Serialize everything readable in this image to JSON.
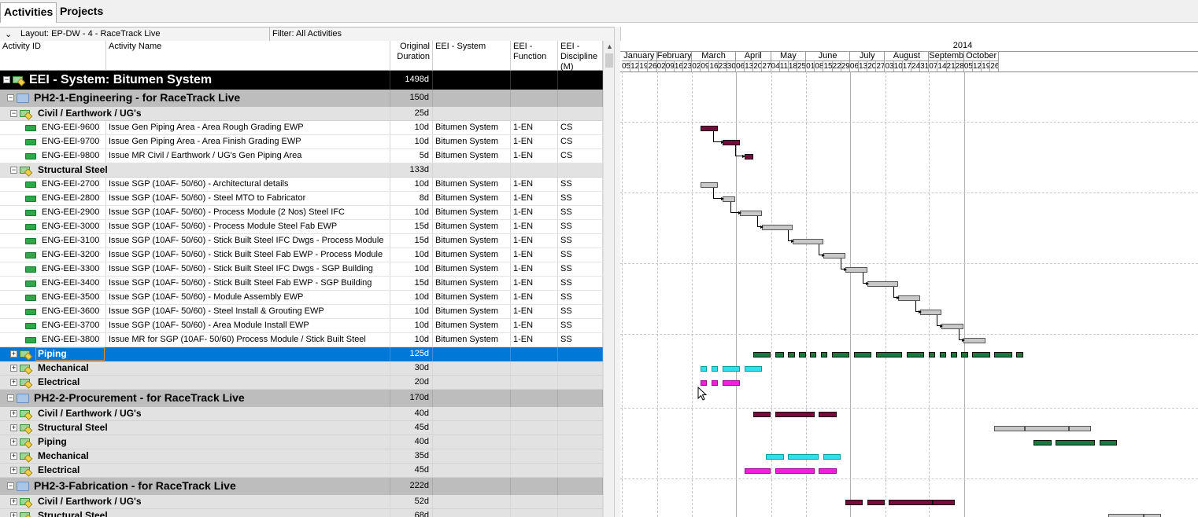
{
  "tabs": [
    "Activities",
    "Projects"
  ],
  "layout_label": "Layout: EP-DW - 4 - RaceTrack Live",
  "filter_label": "Filter: All Activities",
  "columns": [
    "Activity ID",
    "Activity Name",
    "Original Duration",
    "EEI - System",
    "EEI - Function",
    "EEI - Discipline (M)"
  ],
  "rows": [
    {
      "level": "top",
      "id": "",
      "name": "EEI - System: Bitumen System",
      "dur": "1498d",
      "sys": "",
      "fn": "",
      "disc": ""
    },
    {
      "level": "l1",
      "id": "",
      "name": "PH2-1-Engineering - for RaceTrack Live",
      "dur": "150d",
      "sys": "",
      "fn": "",
      "disc": ""
    },
    {
      "level": "l2",
      "id": "",
      "name": "Civil / Earthwork / UG's",
      "dur": "25d",
      "sys": "",
      "fn": "",
      "disc": ""
    },
    {
      "level": "leaf",
      "id": "ENG-EEI-9600",
      "name": "Issue Gen Piping Area - Area Rough Grading EWP",
      "dur": "10d",
      "sys": "Bitumen System",
      "fn": "1-EN",
      "disc": "CS"
    },
    {
      "level": "leaf",
      "id": "ENG-EEI-9700",
      "name": "Issue Gen Piping Area - Area Finish Grading EWP",
      "dur": "10d",
      "sys": "Bitumen System",
      "fn": "1-EN",
      "disc": "CS"
    },
    {
      "level": "leaf",
      "id": "ENG-EEI-9800",
      "name": "Issue MR Civil / Earthwork / UG's Gen Piping Area",
      "dur": "5d",
      "sys": "Bitumen System",
      "fn": "1-EN",
      "disc": "CS"
    },
    {
      "level": "l2",
      "id": "",
      "name": "Structural Steel",
      "dur": "133d",
      "sys": "",
      "fn": "",
      "disc": ""
    },
    {
      "level": "leaf",
      "id": "ENG-EEI-2700",
      "name": "Issue SGP (10AF- 50/60) - Architectural details",
      "dur": "10d",
      "sys": "Bitumen System",
      "fn": "1-EN",
      "disc": "SS"
    },
    {
      "level": "leaf",
      "id": "ENG-EEI-2800",
      "name": "Issue SGP (10AF- 50/60) - Steel MTO to Fabricator",
      "dur": "8d",
      "sys": "Bitumen System",
      "fn": "1-EN",
      "disc": "SS"
    },
    {
      "level": "leaf",
      "id": "ENG-EEI-2900",
      "name": "Issue SGP (10AF- 50/60) - Process Module (2 Nos) Steel IFC",
      "dur": "10d",
      "sys": "Bitumen System",
      "fn": "1-EN",
      "disc": "SS"
    },
    {
      "level": "leaf",
      "id": "ENG-EEI-3000",
      "name": "Issue SGP (10AF- 50/60) - Process Module Steel Fab EWP",
      "dur": "15d",
      "sys": "Bitumen System",
      "fn": "1-EN",
      "disc": "SS"
    },
    {
      "level": "leaf",
      "id": "ENG-EEI-3100",
      "name": "Issue SGP (10AF- 50/60) - Stick Built Steel IFC Dwgs - Process Module",
      "dur": "15d",
      "sys": "Bitumen System",
      "fn": "1-EN",
      "disc": "SS"
    },
    {
      "level": "leaf",
      "id": "ENG-EEI-3200",
      "name": "Issue SGP (10AF- 50/60) - Stick Built Steel Fab EWP - Process Module",
      "dur": "10d",
      "sys": "Bitumen System",
      "fn": "1-EN",
      "disc": "SS"
    },
    {
      "level": "leaf",
      "id": "ENG-EEI-3300",
      "name": "Issue SGP (10AF- 50/60) - Stick Built Steel IFC Dwgs - SGP Building",
      "dur": "10d",
      "sys": "Bitumen System",
      "fn": "1-EN",
      "disc": "SS"
    },
    {
      "level": "leaf",
      "id": "ENG-EEI-3400",
      "name": "Issue SGP (10AF- 50/60) - Stick Built Steel Fab EWP - SGP Building",
      "dur": "15d",
      "sys": "Bitumen System",
      "fn": "1-EN",
      "disc": "SS"
    },
    {
      "level": "leaf",
      "id": "ENG-EEI-3500",
      "name": "Issue SGP (10AF- 50/60) - Module Assembly EWP",
      "dur": "10d",
      "sys": "Bitumen System",
      "fn": "1-EN",
      "disc": "SS"
    },
    {
      "level": "leaf",
      "id": "ENG-EEI-3600",
      "name": "Issue SGP (10AF- 50/60) - Steel Install & Grouting EWP",
      "dur": "10d",
      "sys": "Bitumen System",
      "fn": "1-EN",
      "disc": "SS"
    },
    {
      "level": "leaf",
      "id": "ENG-EEI-3700",
      "name": "Issue SGP (10AF- 50/60) - Area Module Install EWP",
      "dur": "10d",
      "sys": "Bitumen System",
      "fn": "1-EN",
      "disc": "SS"
    },
    {
      "level": "leaf",
      "id": "ENG-EEI-3800",
      "name": "Issue MR for SGP (10AF- 50/60) Process Module / Stick Built Steel",
      "dur": "10d",
      "sys": "Bitumen System",
      "fn": "1-EN",
      "disc": "SS"
    },
    {
      "level": "sel",
      "id": "",
      "name": "Piping",
      "dur": "125d",
      "sys": "",
      "fn": "",
      "disc": ""
    },
    {
      "level": "l2",
      "id": "",
      "name": "Mechanical",
      "dur": "30d",
      "sys": "",
      "fn": "",
      "disc": ""
    },
    {
      "level": "l2",
      "id": "",
      "name": "Electrical",
      "dur": "20d",
      "sys": "",
      "fn": "",
      "disc": ""
    },
    {
      "level": "l1",
      "id": "",
      "name": "PH2-2-Procurement - for RaceTrack Live",
      "dur": "170d",
      "sys": "",
      "fn": "",
      "disc": ""
    },
    {
      "level": "l2",
      "id": "",
      "name": "Civil / Earthwork / UG's",
      "dur": "40d",
      "sys": "",
      "fn": "",
      "disc": ""
    },
    {
      "level": "l2",
      "id": "",
      "name": "Structural Steel",
      "dur": "45d",
      "sys": "",
      "fn": "",
      "disc": ""
    },
    {
      "level": "l2",
      "id": "",
      "name": "Piping",
      "dur": "40d",
      "sys": "",
      "fn": "",
      "disc": ""
    },
    {
      "level": "l2",
      "id": "",
      "name": "Mechanical",
      "dur": "35d",
      "sys": "",
      "fn": "",
      "disc": ""
    },
    {
      "level": "l2",
      "id": "",
      "name": "Electrical",
      "dur": "45d",
      "sys": "",
      "fn": "",
      "disc": ""
    },
    {
      "level": "l1",
      "id": "",
      "name": "PH2-3-Fabrication - for RaceTrack Live",
      "dur": "222d",
      "sys": "",
      "fn": "",
      "disc": ""
    },
    {
      "level": "l2",
      "id": "",
      "name": "Civil / Earthwork / UG's",
      "dur": "52d",
      "sys": "",
      "fn": "",
      "disc": ""
    },
    {
      "level": "l2",
      "id": "",
      "name": "Structural Steel",
      "dur": "68d",
      "sys": "",
      "fn": "",
      "disc": ""
    }
  ],
  "timescale": {
    "year": "2014",
    "months": [
      "January",
      "February",
      "March",
      "April",
      "May",
      "June",
      "July",
      "August",
      "September",
      "October"
    ],
    "weeks": [
      "05",
      "12",
      "19",
      "26",
      "02",
      "09",
      "16",
      "23",
      "02",
      "09",
      "16",
      "23",
      "30",
      "06",
      "13",
      "20",
      "27",
      "04",
      "11",
      "18",
      "25",
      "01",
      "08",
      "15",
      "22",
      "29",
      "06",
      "13",
      "20",
      "27",
      "03",
      "10",
      "17",
      "24",
      "31",
      "07",
      "14",
      "21",
      "28",
      "05",
      "12",
      "19",
      "26"
    ]
  },
  "bar_colors": {
    "civil": "#7a0a3c",
    "steel": "#c8c8c8",
    "piping": "#1a7a3c",
    "mech": "#2fe0ea",
    "elec": "#f020d8"
  },
  "gantt": [
    {
      "row": 3,
      "segs": [
        [
          10,
          14
        ]
      ],
      "color": "civil"
    },
    {
      "row": 4,
      "segs": [
        [
          15,
          19
        ]
      ],
      "color": "civil"
    },
    {
      "row": 5,
      "segs": [
        [
          20,
          22
        ]
      ],
      "color": "civil"
    },
    {
      "row": 7,
      "segs": [
        [
          10,
          14
        ]
      ],
      "color": "steel"
    },
    {
      "row": 8,
      "segs": [
        [
          15,
          18
        ]
      ],
      "color": "steel"
    },
    {
      "row": 9,
      "segs": [
        [
          19,
          24
        ]
      ],
      "color": "steel"
    },
    {
      "row": 10,
      "segs": [
        [
          24,
          31
        ]
      ],
      "color": "steel"
    },
    {
      "row": 11,
      "segs": [
        [
          31,
          38
        ]
      ],
      "color": "steel"
    },
    {
      "row": 12,
      "segs": [
        [
          38,
          43
        ]
      ],
      "color": "steel"
    },
    {
      "row": 13,
      "segs": [
        [
          43,
          48
        ]
      ],
      "color": "steel"
    },
    {
      "row": 14,
      "segs": [
        [
          48,
          55
        ]
      ],
      "color": "steel"
    },
    {
      "row": 15,
      "segs": [
        [
          55,
          60
        ]
      ],
      "color": "steel"
    },
    {
      "row": 16,
      "segs": [
        [
          60,
          65
        ]
      ],
      "color": "steel"
    },
    {
      "row": 17,
      "segs": [
        [
          65,
          70
        ]
      ],
      "color": "steel"
    },
    {
      "row": 18,
      "segs": [
        [
          70,
          75
        ]
      ],
      "color": "steel"
    },
    {
      "row": 19,
      "segs": [
        [
          22,
          26
        ],
        [
          27,
          29
        ],
        [
          30,
          31.5
        ],
        [
          32.5,
          34
        ],
        [
          35,
          36.5
        ],
        [
          37.5,
          39
        ],
        [
          40,
          44
        ],
        [
          45,
          49
        ],
        [
          50,
          56
        ],
        [
          57,
          61
        ],
        [
          62,
          63.5
        ],
        [
          64.5,
          66
        ],
        [
          67,
          68.5
        ],
        [
          69.5,
          71
        ],
        [
          72,
          76
        ],
        [
          77,
          81
        ],
        [
          82,
          83.5
        ]
      ],
      "color": "piping"
    },
    {
      "row": 20,
      "segs": [
        [
          10,
          11.5
        ],
        [
          12.5,
          14
        ],
        [
          15,
          19
        ],
        [
          20,
          24
        ]
      ],
      "color": "mech"
    },
    {
      "row": 21,
      "segs": [
        [
          10,
          11.5
        ],
        [
          12.5,
          14
        ],
        [
          15,
          19
        ]
      ],
      "color": "elec"
    },
    {
      "row": 23,
      "segs": [
        [
          22,
          26
        ],
        [
          27,
          36
        ],
        [
          37,
          41
        ]
      ],
      "color": "civil"
    },
    {
      "row": 24,
      "segs": [
        [
          77,
          84
        ],
        [
          84,
          94
        ],
        [
          94,
          99
        ]
      ],
      "color": "steel"
    },
    {
      "row": 25,
      "segs": [
        [
          86,
          90
        ],
        [
          91,
          100
        ],
        [
          101,
          105
        ]
      ],
      "color": "piping"
    },
    {
      "row": 26,
      "segs": [
        [
          25,
          29
        ],
        [
          30,
          37
        ],
        [
          38,
          42
        ]
      ],
      "color": "mech"
    },
    {
      "row": 27,
      "segs": [
        [
          20,
          26
        ],
        [
          27,
          36
        ],
        [
          37,
          41
        ]
      ],
      "color": "elec"
    },
    {
      "row": 29,
      "segs": [
        [
          43,
          47
        ],
        [
          48,
          52
        ],
        [
          53,
          63
        ],
        [
          63,
          68
        ]
      ],
      "color": "civil"
    },
    {
      "row": 30,
      "segs": [
        [
          103,
          111
        ],
        [
          111,
          115
        ]
      ],
      "color": "steel"
    }
  ],
  "links": [
    3,
    4,
    7,
    8,
    9,
    10,
    11,
    12,
    13,
    14,
    15,
    16,
    17
  ]
}
